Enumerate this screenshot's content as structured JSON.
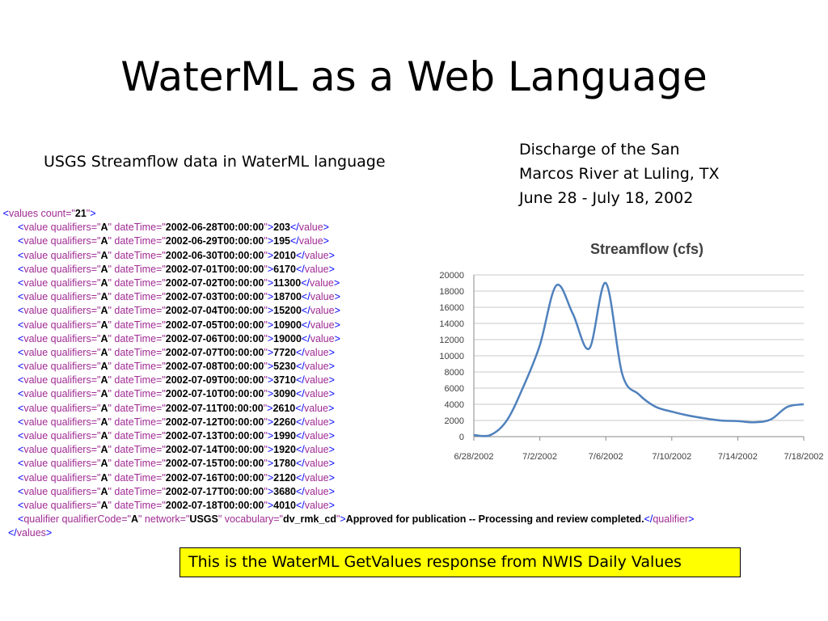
{
  "slide": {
    "title": "WaterML as a Web Language",
    "left_caption": "USGS Streamflow data in WaterML language",
    "right_caption": [
      "Discharge of the San",
      "Marcos River at Luling, TX",
      "June 28 - July 18, 2002"
    ],
    "note": "This is the WaterML GetValues response from NWIS Daily Values"
  },
  "xml": {
    "collapse_marker": "-",
    "values_count": "21",
    "qualifier_attr": "A",
    "rows": [
      {
        "dateTime": "2002-06-28T00:00:00",
        "value": "203"
      },
      {
        "dateTime": "2002-06-29T00:00:00",
        "value": "195"
      },
      {
        "dateTime": "2002-06-30T00:00:00",
        "value": "2010"
      },
      {
        "dateTime": "2002-07-01T00:00:00",
        "value": "6170"
      },
      {
        "dateTime": "2002-07-02T00:00:00",
        "value": "11300"
      },
      {
        "dateTime": "2002-07-03T00:00:00",
        "value": "18700"
      },
      {
        "dateTime": "2002-07-04T00:00:00",
        "value": "15200"
      },
      {
        "dateTime": "2002-07-05T00:00:00",
        "value": "10900"
      },
      {
        "dateTime": "2002-07-06T00:00:00",
        "value": "19000"
      },
      {
        "dateTime": "2002-07-07T00:00:00",
        "value": "7720"
      },
      {
        "dateTime": "2002-07-08T00:00:00",
        "value": "5230"
      },
      {
        "dateTime": "2002-07-09T00:00:00",
        "value": "3710"
      },
      {
        "dateTime": "2002-07-10T00:00:00",
        "value": "3090"
      },
      {
        "dateTime": "2002-07-11T00:00:00",
        "value": "2610"
      },
      {
        "dateTime": "2002-07-12T00:00:00",
        "value": "2260"
      },
      {
        "dateTime": "2002-07-13T00:00:00",
        "value": "1990"
      },
      {
        "dateTime": "2002-07-14T00:00:00",
        "value": "1920"
      },
      {
        "dateTime": "2002-07-15T00:00:00",
        "value": "1780"
      },
      {
        "dateTime": "2002-07-16T00:00:00",
        "value": "2120"
      },
      {
        "dateTime": "2002-07-17T00:00:00",
        "value": "3680"
      },
      {
        "dateTime": "2002-07-18T00:00:00",
        "value": "4010"
      }
    ],
    "qualifier_line": {
      "qualifierCode": "A",
      "network": "USGS",
      "vocabulary": "dv_rmk_cd",
      "text": "Approved for publication -- Processing and review completed."
    }
  },
  "chart_data": {
    "type": "line",
    "title": "Streamflow (cfs)",
    "xlabel": "",
    "ylabel": "",
    "x": [
      "2002-06-28",
      "2002-06-29",
      "2002-06-30",
      "2002-07-01",
      "2002-07-02",
      "2002-07-03",
      "2002-07-04",
      "2002-07-05",
      "2002-07-06",
      "2002-07-07",
      "2002-07-08",
      "2002-07-09",
      "2002-07-10",
      "2002-07-11",
      "2002-07-12",
      "2002-07-13",
      "2002-07-14",
      "2002-07-15",
      "2002-07-16",
      "2002-07-17",
      "2002-07-18"
    ],
    "series": [
      {
        "values": [
          203,
          195,
          2010,
          6170,
          11300,
          18700,
          15200,
          10900,
          19000,
          7720,
          5230,
          3710,
          3090,
          2610,
          2260,
          1990,
          1920,
          1780,
          2120,
          3680,
          4010
        ]
      }
    ],
    "x_tick_labels": [
      "6/28/2002",
      "7/2/2002",
      "7/6/2002",
      "7/10/2002",
      "7/14/2002",
      "7/18/2002"
    ],
    "x_tick_dates": [
      "2002-06-28",
      "2002-07-02",
      "2002-07-06",
      "2002-07-10",
      "2002-07-14",
      "2002-07-18"
    ],
    "y_ticks": [
      0,
      2000,
      4000,
      6000,
      8000,
      10000,
      12000,
      14000,
      16000,
      18000,
      20000
    ],
    "ylim": [
      0,
      20000
    ],
    "grid": true,
    "legend": "none",
    "line_color": "#4f81bd"
  }
}
